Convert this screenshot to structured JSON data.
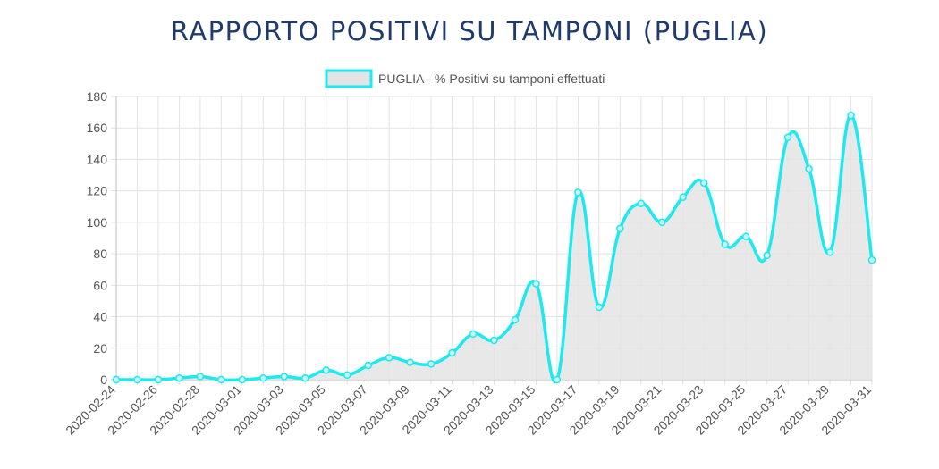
{
  "chart_data": {
    "type": "area",
    "title": "RAPPORTO POSITIVI SU TAMPONI (PUGLIA)",
    "xlabel": "",
    "ylabel": "",
    "ylim": [
      0,
      180
    ],
    "y_ticks": [
      0,
      20,
      40,
      60,
      80,
      100,
      120,
      140,
      160,
      180
    ],
    "grid": true,
    "legend": "top-center",
    "categories": [
      "2020-02-24",
      "2020-02-25",
      "2020-02-26",
      "2020-02-27",
      "2020-02-28",
      "2020-02-29",
      "2020-03-01",
      "2020-03-02",
      "2020-03-03",
      "2020-03-04",
      "2020-03-05",
      "2020-03-06",
      "2020-03-07",
      "2020-03-08",
      "2020-03-09",
      "2020-03-10",
      "2020-03-11",
      "2020-03-12",
      "2020-03-13",
      "2020-03-14",
      "2020-03-15",
      "2020-03-16",
      "2020-03-17",
      "2020-03-18",
      "2020-03-19",
      "2020-03-20",
      "2020-03-21",
      "2020-03-22",
      "2020-03-23",
      "2020-03-24",
      "2020-03-25",
      "2020-03-26",
      "2020-03-27",
      "2020-03-28",
      "2020-03-29",
      "2020-03-30",
      "2020-03-31"
    ],
    "x_tick_labels": [
      "2020-02-24",
      "2020-02-26",
      "2020-02-28",
      "2020-03-01",
      "2020-03-03",
      "2020-03-05",
      "2020-03-07",
      "2020-03-09",
      "2020-03-11",
      "2020-03-13",
      "2020-03-15",
      "2020-03-17",
      "2020-03-19",
      "2020-03-21",
      "2020-03-23",
      "2020-03-25",
      "2020-03-27",
      "2020-03-29",
      "2020-03-31"
    ],
    "series": [
      {
        "name": "PUGLIA - % Positivi su tamponi effettuati",
        "values": [
          0,
          0,
          0,
          1,
          2,
          0,
          0,
          1,
          2,
          1,
          6,
          3,
          9,
          14,
          11,
          10,
          17,
          29,
          25,
          38,
          61,
          0,
          119,
          46,
          96,
          112,
          100,
          116,
          125,
          86,
          91,
          79,
          154,
          134,
          81,
          168,
          76
        ],
        "line_color": "#1de9f0",
        "fill_color": "#e4e4e4"
      }
    ]
  }
}
